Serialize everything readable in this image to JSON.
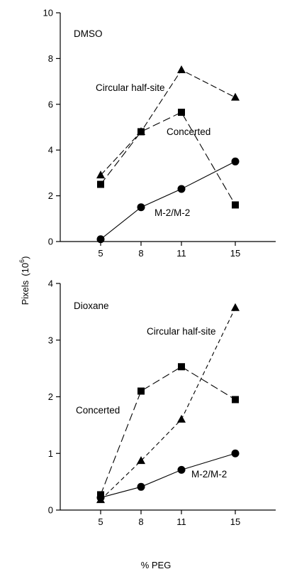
{
  "chart_data": [
    {
      "type": "line",
      "panel_label": "DMSO",
      "categories": [
        "5",
        "8",
        "11",
        "15"
      ],
      "x": [
        5,
        8,
        11,
        15
      ],
      "xlim": [
        2,
        18
      ],
      "ylim": [
        0,
        10
      ],
      "yticks": [
        "0",
        "2",
        "4",
        "6",
        "8",
        "10"
      ],
      "grid": false,
      "legend": "none",
      "series": [
        {
          "name": "Circular half-site",
          "marker": "triangle",
          "dash": "long-short",
          "values": [
            2.9,
            4.8,
            7.5,
            6.3
          ]
        },
        {
          "name": "Concerted",
          "marker": "square",
          "dash": "long",
          "values": [
            2.5,
            4.8,
            5.65,
            1.6
          ]
        },
        {
          "name": "M-2/M-2",
          "marker": "circle",
          "dash": "solid",
          "values": [
            0.1,
            1.5,
            2.3,
            3.5
          ]
        }
      ]
    },
    {
      "type": "line",
      "panel_label": "Dioxane",
      "categories": [
        "5",
        "8",
        "11",
        "15"
      ],
      "x": [
        5,
        8,
        11,
        15
      ],
      "xlim": [
        2,
        18
      ],
      "ylim": [
        0,
        4
      ],
      "yticks": [
        "0",
        "1",
        "2",
        "3",
        "4"
      ],
      "grid": false,
      "legend": "none",
      "series": [
        {
          "name": "Circular half-site",
          "marker": "triangle",
          "dash": "short",
          "values": [
            0.18,
            0.87,
            1.6,
            3.57
          ]
        },
        {
          "name": "Concerted",
          "marker": "square",
          "dash": "long",
          "values": [
            0.27,
            2.1,
            2.53,
            1.95
          ]
        },
        {
          "name": "M-2/M-2",
          "marker": "circle",
          "dash": "solid",
          "values": [
            0.22,
            0.41,
            0.71,
            1.0
          ]
        }
      ]
    }
  ],
  "ylabel_main": "Pixels",
  "ylabel_exp_base": "(10",
  "ylabel_exp": "6",
  "ylabel_exp_close": ")",
  "xlabel": "% PEG"
}
